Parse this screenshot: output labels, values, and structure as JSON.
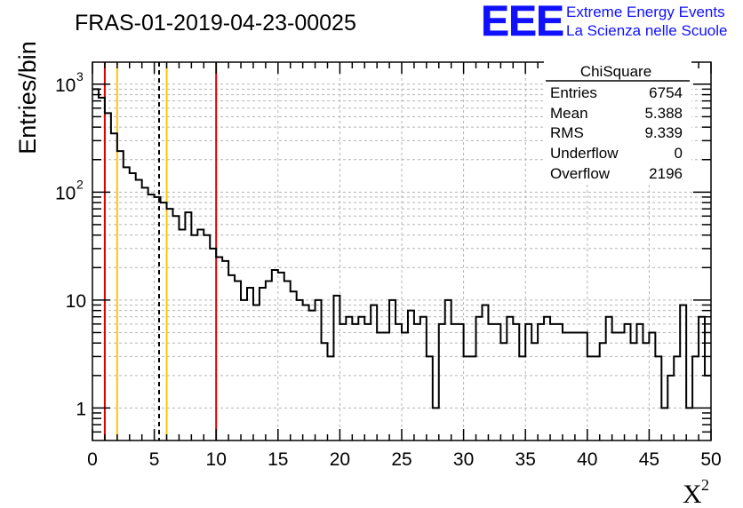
{
  "title": "FRAS-01-2019-04-23-00025",
  "logo": {
    "mark": "EEE",
    "line1": "Extreme Energy Events",
    "line2": "La Scienza nelle Scuole",
    "color": "#1010ff"
  },
  "stats": {
    "name": "ChiSquare",
    "rows": [
      {
        "label": "Entries",
        "value": "6754"
      },
      {
        "label": "Mean",
        "value": "5.388"
      },
      {
        "label": "RMS",
        "value": "9.339"
      },
      {
        "label": "Underflow",
        "value": "0"
      },
      {
        "label": "Overflow",
        "value": "2196"
      }
    ]
  },
  "chart_data": {
    "type": "bar",
    "subtype": "step-histogram",
    "xlabel": "X",
    "xlabel_superscript": "2",
    "ylabel": "Entries/bin",
    "xlim": [
      0,
      50
    ],
    "ylim": [
      0.5,
      1600
    ],
    "yscale": "log",
    "grid": true,
    "bin_width": 0.5,
    "x_ticks": [
      "0",
      "5",
      "10",
      "15",
      "20",
      "25",
      "30",
      "35",
      "40",
      "45",
      "50"
    ],
    "y_ticks": [
      {
        "value": 1,
        "label": "1"
      },
      {
        "value": 10,
        "label": "10"
      },
      {
        "value": 100,
        "label": "10",
        "exp": "2"
      },
      {
        "value": 1000,
        "label": "10",
        "exp": "3"
      }
    ],
    "values": [
      900,
      750,
      540,
      350,
      240,
      170,
      150,
      130,
      110,
      95,
      90,
      80,
      70,
      60,
      45,
      65,
      40,
      45,
      40,
      30,
      25,
      23,
      17,
      15,
      10,
      13,
      9,
      13,
      15,
      19,
      18,
      15,
      12,
      10,
      9,
      8,
      10,
      4,
      3,
      11,
      6,
      7,
      6,
      7,
      6,
      9,
      5,
      5,
      10,
      6,
      5,
      8,
      6,
      7,
      3,
      1,
      6,
      10,
      6,
      6,
      3,
      3,
      7,
      9,
      6,
      6,
      4,
      7,
      6,
      3,
      6,
      4,
      6,
      7,
      6,
      6,
      5,
      5,
      5,
      5,
      3,
      3,
      4,
      7,
      5,
      5,
      6,
      4,
      6,
      4,
      5,
      3,
      1,
      2,
      3,
      9,
      1,
      3,
      7,
      2,
      2
    ],
    "vlines": [
      {
        "x": 1,
        "color": "#dd0000",
        "style": "solid"
      },
      {
        "x": 2,
        "color": "#ffc800",
        "style": "solid"
      },
      {
        "x": 5.388,
        "color": "#000000",
        "style": "dashed"
      },
      {
        "x": 6,
        "color": "#ffc800",
        "style": "solid"
      },
      {
        "x": 10,
        "color": "#dd0000",
        "style": "solid"
      }
    ]
  }
}
